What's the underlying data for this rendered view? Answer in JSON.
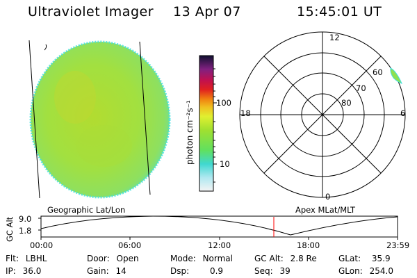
{
  "header": {
    "title": "Ultraviolet Imager",
    "date": "13 Apr 07",
    "time": "15:45:01 UT"
  },
  "colorbar": {
    "unit_label": "photon cm⁻²s⁻¹",
    "tick_labels": [
      "100",
      "10"
    ]
  },
  "polar_plot": {
    "mlt_labels": {
      "top": "12",
      "left": "18",
      "right": "6",
      "bottom": "0"
    },
    "lat_labels": [
      "60",
      "70",
      "80"
    ]
  },
  "panel_labels": {
    "geographic": "Geographic Lat/Lon",
    "apex": "Apex MLat/MLT"
  },
  "orbit_plot": {
    "ylabel": "GC Alt",
    "y_ticks": [
      "9.0",
      "1.8"
    ],
    "x_ticks": [
      "00:00",
      "06:00",
      "12:00",
      "18:00",
      "23:59"
    ]
  },
  "status": {
    "flt": {
      "label": "Flt:",
      "value": "LBHL"
    },
    "ip": {
      "label": "IP:",
      "value": "36.0"
    },
    "door": {
      "label": "Door:",
      "value": "Open"
    },
    "gain": {
      "label": "Gain:",
      "value": "14"
    },
    "mode": {
      "label": "Mode:",
      "value": "Normal"
    },
    "dsp": {
      "label": "Dsp:",
      "value": "0.9"
    },
    "gcalt": {
      "label": "GC Alt:",
      "value": "2.8 Re"
    },
    "seq": {
      "label": "Seq:",
      "value": "39"
    },
    "glat": {
      "label": "GLat:",
      "value": "35.9"
    },
    "glon": {
      "label": "GLon:",
      "value": "254.0"
    }
  },
  "colors": {
    "disk_fill": "#a8e040",
    "disk_edge": "#40e0e0",
    "marker": "#ff0000"
  }
}
